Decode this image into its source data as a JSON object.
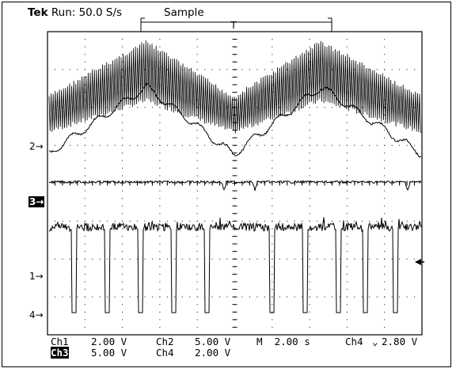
{
  "header": {
    "brand": "Tek",
    "status": "Run: 50.0 S/s",
    "mode": "Sample"
  },
  "channels": {
    "ch2_marker": "2",
    "ch3_marker": "3",
    "ch1_marker": "1",
    "ch4_marker": "4"
  },
  "readout": {
    "row1": {
      "ch1_label": "Ch1",
      "ch1_scale": "2.00 V",
      "ch2_label": "Ch2",
      "ch2_scale": "5.00 V",
      "timebase": "M  2.00 s",
      "trigger_source": "Ch4",
      "trigger_level": "2.80 V"
    },
    "row2": {
      "ch3_label": "Ch3",
      "ch3_scale": "5.00 V",
      "ch4_label": "Ch4",
      "ch4_scale": "2.00 V"
    }
  },
  "icons": {
    "trigger_marker": "T",
    "trigger_edge": "falling-edge-icon",
    "trigger_level_arrow": "left-arrow-icon",
    "channel_arrow": "right-arrow-icon"
  },
  "colors": {
    "trace": "#000000",
    "background": "#ffffff"
  }
}
